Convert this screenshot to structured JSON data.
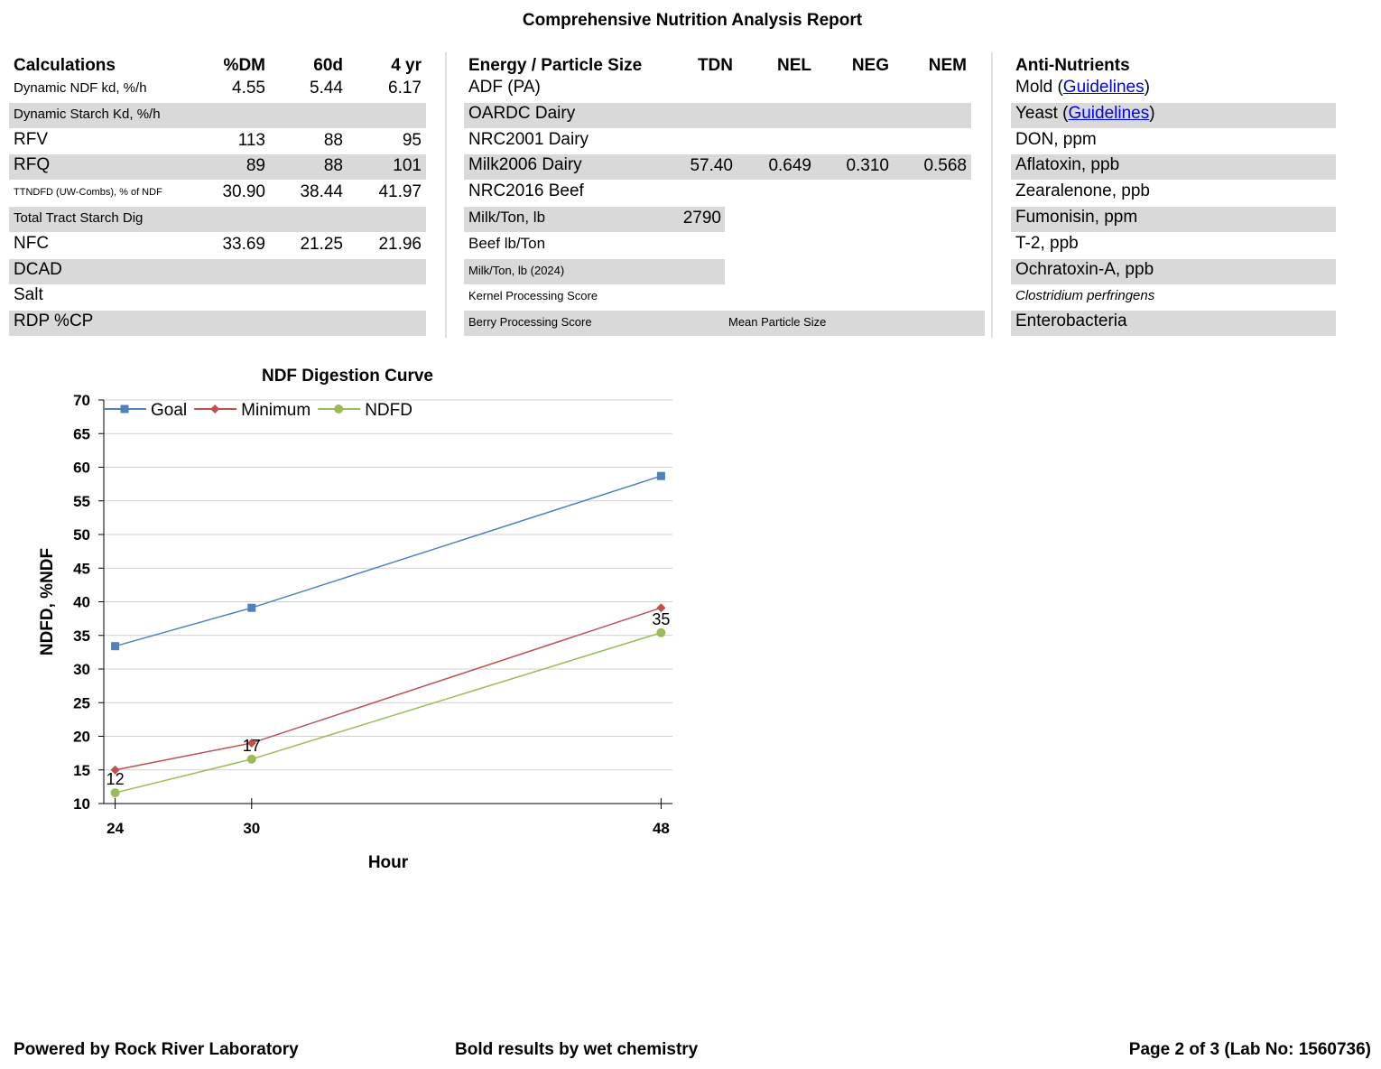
{
  "header": {
    "title": "Comprehensive Nutrition Analysis Report"
  },
  "calculations": {
    "columns": [
      "Calculations",
      "%DM",
      "60d",
      "4 yr"
    ],
    "rows": [
      {
        "label": "Dynamic NDF kd, %/h",
        "values": [
          "4.55",
          "5.44",
          "6.17"
        ]
      },
      {
        "label": "Dynamic Starch Kd, %/h"
      },
      {
        "label": "RFV",
        "values": [
          "113",
          "88",
          "95"
        ]
      },
      {
        "label": "RFQ",
        "values": [
          "89",
          "88",
          "101"
        ]
      },
      {
        "label": "TTNDFD (UW-Combs), % of NDF",
        "values": [
          "30.90",
          "38.44",
          "41.97"
        ]
      },
      {
        "label": "Total Tract Starch Dig"
      },
      {
        "label": "NFC",
        "values": [
          "33.69",
          "21.25",
          "21.96"
        ]
      },
      {
        "label": "DCAD"
      },
      {
        "label": "Salt"
      },
      {
        "label": "RDP %CP"
      }
    ]
  },
  "energy": {
    "columns": [
      "Energy / Particle Size",
      "TDN",
      "NEL",
      "NEG",
      "NEM"
    ],
    "rows": [
      {
        "label": "ADF (PA)"
      },
      {
        "label": "OARDC Dairy"
      },
      {
        "label": "NRC2001 Dairy"
      },
      {
        "label": "Milk2006 Dairy",
        "values": [
          "57.40",
          "0.649",
          "0.310",
          "0.568"
        ]
      },
      {
        "label": "NRC2016 Beef"
      },
      {
        "label": "Milk/Ton, lb",
        "values": [
          "2790"
        ]
      },
      {
        "label": "Beef lb/Ton"
      },
      {
        "label": "Milk/Ton, lb (2024)"
      },
      {
        "label": "Kernel Processing Score"
      },
      {
        "label": "Berry Processing Score",
        "note": "Mean Particle Size"
      }
    ]
  },
  "anti_nutrients": {
    "columns": [
      "Anti-Nutrients"
    ],
    "rows": [
      {
        "label": "Mold (",
        "link": "Guidelines",
        "suffix": ")"
      },
      {
        "label": "Yeast (",
        "link": "Guidelines",
        "suffix": ")"
      },
      {
        "label": "DON, ppm"
      },
      {
        "label": "Aflatoxin, ppb"
      },
      {
        "label": "Zearalenone, ppb"
      },
      {
        "label": "Fumonisin, ppm"
      },
      {
        "label": "T-2, ppb"
      },
      {
        "label": "Ochratoxin-A, ppb"
      },
      {
        "label": "Clostridium perfringens"
      },
      {
        "label": "Enterobacteria"
      }
    ]
  },
  "chart_data": {
    "type": "line",
    "title": "NDF Digestion Curve",
    "x_label": "Hour",
    "y_label": "NDFD, %NDF",
    "x": [
      24,
      30,
      48
    ],
    "xlim": [
      23.5,
      48.5
    ],
    "xticks": [
      24,
      30,
      48
    ],
    "ylim": [
      10,
      70
    ],
    "yticks": [
      10,
      15,
      20,
      25,
      30,
      35,
      40,
      45,
      50,
      55,
      60,
      65,
      70
    ],
    "grid": true,
    "legend": "top-left",
    "series": [
      {
        "name": "Goal",
        "color": "#4f81bd",
        "marker": "square",
        "values": [
          33.4,
          39.1,
          58.7
        ]
      },
      {
        "name": "Minimum",
        "color": "#c0504d",
        "marker": "diamond",
        "values": [
          15,
          19,
          39.1
        ]
      },
      {
        "name": "NDFD",
        "color": "#9bbb59",
        "marker": "circle",
        "values": [
          11.6,
          16.6,
          35.4
        ],
        "value_labels": [
          "12",
          "17",
          "35"
        ]
      }
    ]
  },
  "footer": {
    "left": "Powered by Rock River Laboratory",
    "center": "Bold results by wet chemistry",
    "right": "Page 2 of 3 (Lab No: 1560736)"
  }
}
